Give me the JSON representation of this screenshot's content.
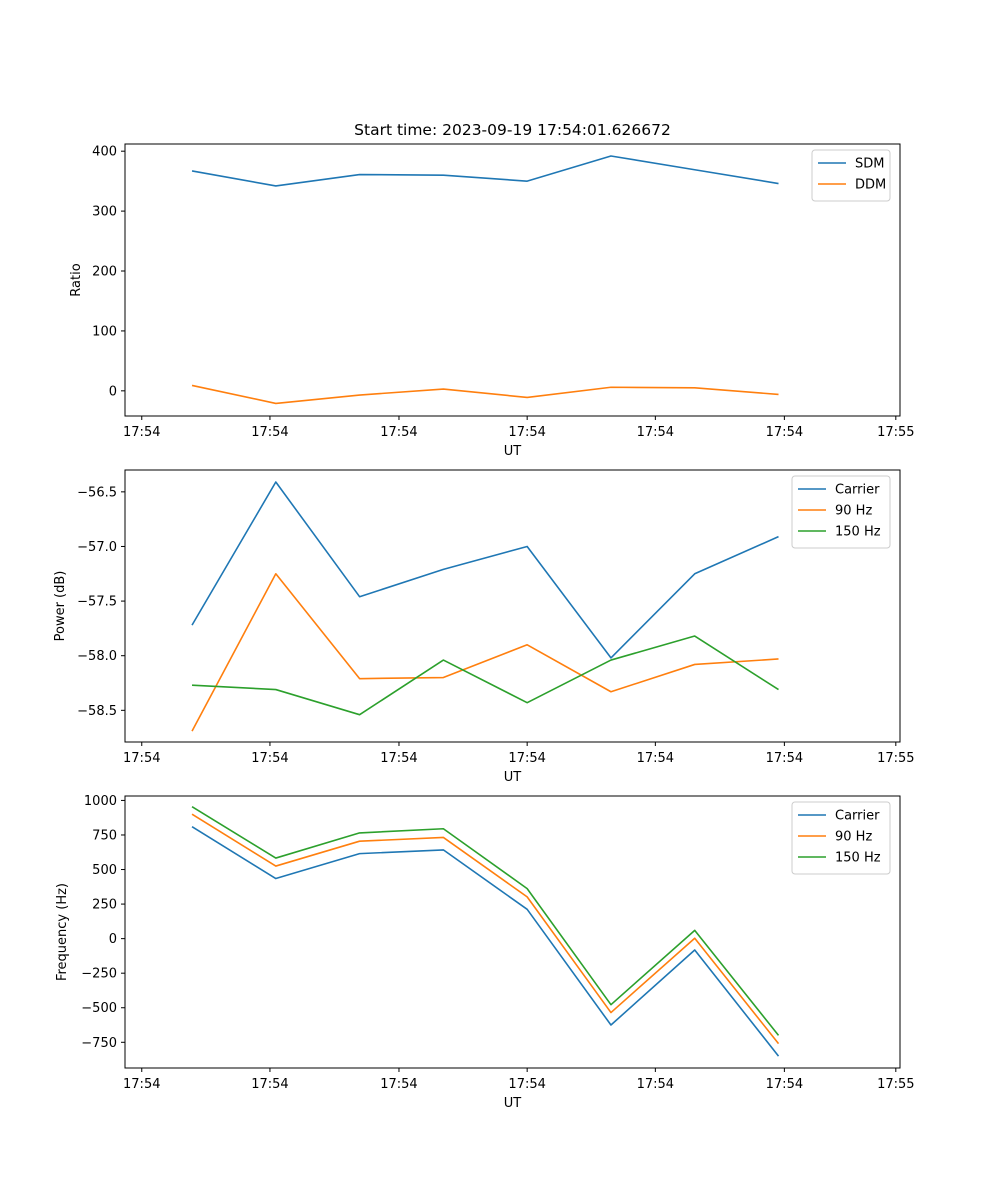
{
  "figure_title": "Start time: 2023-09-19 17:54:01.626672",
  "chart_data": [
    {
      "type": "line",
      "id": "ratio",
      "title": "Start time: 2023-09-19 17:54:01.626672",
      "xlabel": "UT",
      "ylabel": "Ratio",
      "x": [
        1,
        2,
        3,
        4,
        5,
        6,
        7,
        8
      ],
      "xlim": [
        0.2,
        9.45
      ],
      "xticks": [
        0.4,
        1.93,
        3.47,
        5.0,
        6.53,
        8.07,
        9.4
      ],
      "xtick_labels": [
        "17:54",
        "17:54",
        "17:54",
        "17:54",
        "17:54",
        "17:54",
        "17:55"
      ],
      "ylim": [
        -42,
        412
      ],
      "yticks": [
        0,
        100,
        200,
        300,
        400
      ],
      "ytick_labels": [
        "0",
        "100",
        "200",
        "300",
        "400"
      ],
      "legend_position": "upper right",
      "series": [
        {
          "name": "SDM",
          "color": "#1f77b4",
          "values": [
            367,
            342,
            361,
            360,
            350,
            392,
            369,
            346
          ]
        },
        {
          "name": "DDM",
          "color": "#ff7f0e",
          "values": [
            9,
            -21,
            -7,
            3,
            -11,
            6,
            5,
            -6
          ]
        }
      ]
    },
    {
      "type": "line",
      "id": "power",
      "title": "",
      "xlabel": "UT",
      "ylabel": "Power (dB)",
      "x": [
        1,
        2,
        3,
        4,
        5,
        6,
        7,
        8
      ],
      "xlim": [
        0.2,
        9.45
      ],
      "xticks": [
        0.4,
        1.93,
        3.47,
        5.0,
        6.53,
        8.07,
        9.4
      ],
      "xtick_labels": [
        "17:54",
        "17:54",
        "17:54",
        "17:54",
        "17:54",
        "17:54",
        "17:55"
      ],
      "ylim": [
        -58.79,
        -56.3
      ],
      "yticks": [
        -58.5,
        -58.0,
        -57.5,
        -57.0,
        -56.5
      ],
      "ytick_labels": [
        "−58.5",
        "−58.0",
        "−57.5",
        "−57.0",
        "−56.5"
      ],
      "legend_position": "upper right",
      "series": [
        {
          "name": "Carrier",
          "color": "#1f77b4",
          "values": [
            -57.72,
            -56.41,
            -57.46,
            -57.21,
            -57.0,
            -58.02,
            -57.25,
            -56.91
          ]
        },
        {
          "name": "90 Hz",
          "color": "#ff7f0e",
          "values": [
            -58.69,
            -57.25,
            -58.21,
            -58.2,
            -57.9,
            -58.33,
            -58.08,
            -58.03
          ]
        },
        {
          "name": "150 Hz",
          "color": "#2ca02c",
          "values": [
            -58.27,
            -58.31,
            -58.54,
            -58.04,
            -58.43,
            -58.04,
            -57.82,
            -58.31
          ]
        }
      ]
    },
    {
      "type": "line",
      "id": "frequency",
      "title": "",
      "xlabel": "UT",
      "ylabel": "Frequency (Hz)",
      "x": [
        1,
        2,
        3,
        4,
        5,
        6,
        7,
        8
      ],
      "xlim": [
        0.2,
        9.45
      ],
      "xticks": [
        0.4,
        1.93,
        3.47,
        5.0,
        6.53,
        8.07,
        9.4
      ],
      "xtick_labels": [
        "17:54",
        "17:54",
        "17:54",
        "17:54",
        "17:54",
        "17:54",
        "17:55"
      ],
      "ylim": [
        -936,
        1032
      ],
      "yticks": [
        -750,
        -500,
        -250,
        0,
        250,
        500,
        750,
        1000
      ],
      "ytick_labels": [
        "−750",
        "−500",
        "−250",
        "0",
        "250",
        "500",
        "750",
        "1000"
      ],
      "legend_position": "upper right",
      "series": [
        {
          "name": "Carrier",
          "color": "#1f77b4",
          "values": [
            810,
            435,
            615,
            642,
            212,
            -625,
            -82,
            -850
          ]
        },
        {
          "name": "90 Hz",
          "color": "#ff7f0e",
          "values": [
            900,
            525,
            705,
            732,
            302,
            -535,
            3,
            -760
          ]
        },
        {
          "name": "150 Hz",
          "color": "#2ca02c",
          "values": [
            955,
            583,
            765,
            795,
            362,
            -478,
            60,
            -700
          ]
        }
      ]
    }
  ]
}
